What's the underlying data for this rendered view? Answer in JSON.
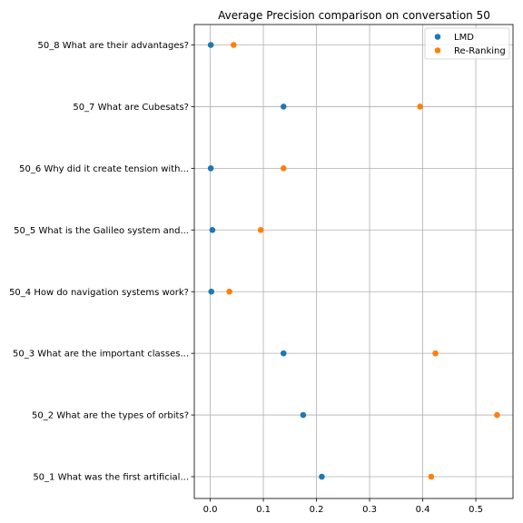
{
  "chart_data": {
    "type": "scatter",
    "title": "Average Precision comparison on conversation 50",
    "xlabel": "",
    "ylabel": "",
    "xlim": [
      -0.03,
      0.57
    ],
    "x_ticks": [
      0.0,
      0.1,
      0.2,
      0.3,
      0.4,
      0.5
    ],
    "x_tick_labels": [
      "0.0",
      "0.1",
      "0.2",
      "0.3",
      "0.4",
      "0.5"
    ],
    "grid": true,
    "legend_position": "top-right",
    "categories": [
      "50_1 What was the first artificial...",
      "50_2 What are the types of orbits?",
      "50_3 What are the important classes...",
      "50_4 How do navigation systems work?",
      "50_5 What is the Galileo system and...",
      "50_6 Why did it create tension with...",
      "50_7 What are Cubesats?",
      "50_8 What are their advantages?"
    ],
    "series": [
      {
        "name": "LMD",
        "color": "#1f77b4",
        "values": [
          0.21,
          0.175,
          0.138,
          0.002,
          0.004,
          0.001,
          0.138,
          0.001
        ]
      },
      {
        "name": "Re-Ranking",
        "color": "#ff7f0e",
        "values": [
          0.416,
          0.54,
          0.424,
          0.036,
          0.095,
          0.138,
          0.395,
          0.044
        ]
      }
    ]
  }
}
